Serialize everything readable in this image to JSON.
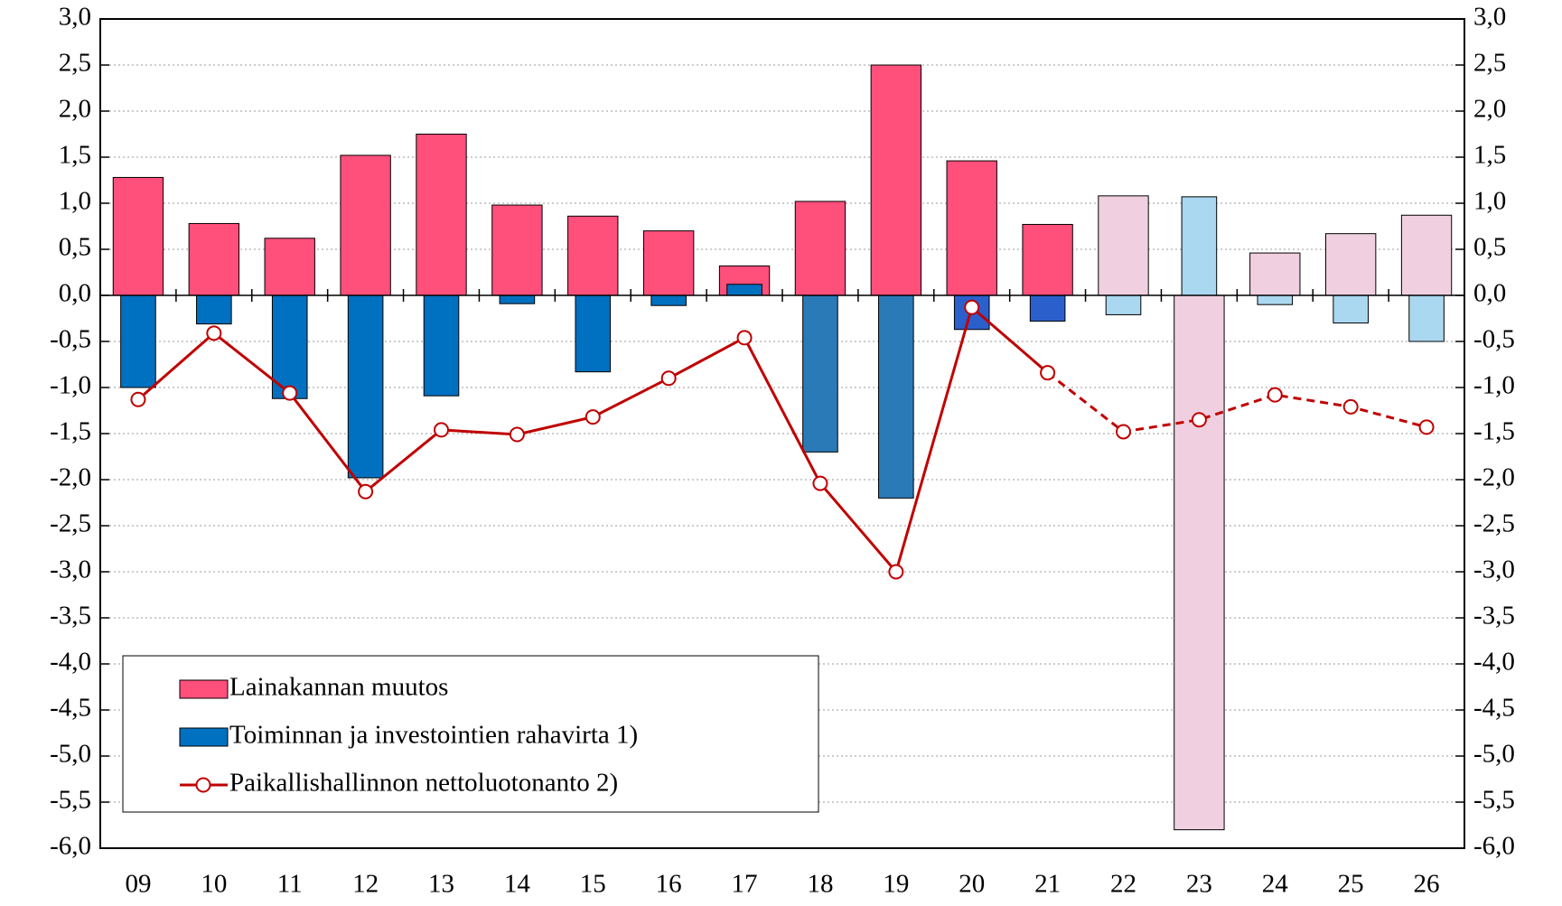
{
  "chart_data": {
    "type": "bar",
    "categories": [
      "09",
      "10",
      "11",
      "12",
      "13",
      "14",
      "15",
      "16",
      "17",
      "18",
      "19",
      "20",
      "21",
      "22",
      "23",
      "24",
      "25",
      "26"
    ],
    "series": [
      {
        "name": "Lainakannan muutos",
        "type": "bar",
        "color": "#ff4f7b",
        "colors": [
          "#ff4f7b",
          "#ff4f7b",
          "#ff4f7b",
          "#ff4f7b",
          "#ff4f7b",
          "#ff4f7b",
          "#ff4f7b",
          "#ff4f7b",
          "#ff4f7b",
          "#ff4f7b",
          "#ff4f7b",
          "#ff4f7b",
          "#ff4f7b",
          "#f0d0e0",
          "#f0d0e0",
          "#f0d0e0",
          "#f0d0e0",
          "#f0d0e0"
        ],
        "values": [
          1.28,
          0.78,
          0.62,
          1.52,
          1.75,
          0.98,
          0.86,
          0.7,
          0.32,
          1.02,
          2.5,
          1.46,
          0.77,
          1.08,
          -5.8,
          0.46,
          0.67,
          0.87
        ]
      },
      {
        "name": "Toiminnan ja investointien rahavirta 1)",
        "type": "bar",
        "color": "#0070c0",
        "colors": [
          "#0070c0",
          "#0070c0",
          "#0070c0",
          "#0070c0",
          "#0070c0",
          "#0070c0",
          "#0070c0",
          "#0070c0",
          "#0070c0",
          "#2a7ab8",
          "#2a7ab8",
          "#2b5fcc",
          "#2b5fcc",
          "#aad8f0",
          "#aad8f0",
          "#aad8f0",
          "#aad8f0",
          "#aad8f0"
        ],
        "values": [
          -1.0,
          -0.31,
          -1.12,
          -1.98,
          -1.09,
          -0.09,
          -0.83,
          -0.11,
          0.12,
          -1.7,
          -2.2,
          -0.37,
          -0.28,
          -0.21,
          1.07,
          -0.1,
          -0.3,
          -0.5
        ]
      },
      {
        "name": "Paikallishallinnon nettoluotonanto 2)",
        "type": "line",
        "color": "#c00000",
        "dashed_from": "22",
        "values": [
          -1.13,
          -0.41,
          -1.06,
          -2.13,
          -1.46,
          -1.51,
          -1.32,
          -0.9,
          -0.46,
          -2.04,
          -3.0,
          -0.13,
          -0.84,
          -1.48,
          -1.35,
          -1.08,
          -1.21,
          -1.43
        ]
      }
    ],
    "ylim": [
      -6,
      3
    ],
    "yticks": [
      {
        "value": -6,
        "label": "-6,0"
      },
      {
        "value": -5.5,
        "label": "-5,5"
      },
      {
        "value": -5,
        "label": "-5,0"
      },
      {
        "value": -4.5,
        "label": "-4,5"
      },
      {
        "value": -4,
        "label": "-4,0"
      },
      {
        "value": -3.5,
        "label": "-3,5"
      },
      {
        "value": -3,
        "label": "-3,0"
      },
      {
        "value": -2.5,
        "label": "-2,5"
      },
      {
        "value": -2,
        "label": "-2,0"
      },
      {
        "value": -1.5,
        "label": "-1,5"
      },
      {
        "value": -1,
        "label": "-1,0"
      },
      {
        "value": -0.5,
        "label": "-0,5"
      },
      {
        "value": 0,
        "label": "0,0"
      },
      {
        "value": 0.5,
        "label": "0,5"
      },
      {
        "value": 1,
        "label": "1,0"
      },
      {
        "value": 1.5,
        "label": "1,5"
      },
      {
        "value": 2,
        "label": "2,0"
      },
      {
        "value": 2.5,
        "label": "2,5"
      },
      {
        "value": 3,
        "label": "3,0"
      }
    ],
    "y2lim": [
      -6,
      3
    ],
    "y2ticks": [
      {
        "value": -6,
        "label": "-6,0"
      },
      {
        "value": -5.5,
        "label": "-5,5"
      },
      {
        "value": -5,
        "label": "-5,0"
      },
      {
        "value": -4.5,
        "label": "-4,5"
      },
      {
        "value": -4,
        "label": "-4,0"
      },
      {
        "value": -3.5,
        "label": "-3,5"
      },
      {
        "value": -3,
        "label": "-3,0"
      },
      {
        "value": -2.5,
        "label": "-2,5"
      },
      {
        "value": -2,
        "label": "-2,0"
      },
      {
        "value": -1.5,
        "label": "-1,5"
      },
      {
        "value": -1,
        "label": "-1,0"
      },
      {
        "value": -0.5,
        "label": "-0,5"
      },
      {
        "value": 0,
        "label": "0,0"
      },
      {
        "value": 0.5,
        "label": "0,5"
      },
      {
        "value": 1,
        "label": "1,0"
      },
      {
        "value": 1.5,
        "label": "1,5"
      },
      {
        "value": 2,
        "label": "2,0"
      },
      {
        "value": 2.5,
        "label": "2,5"
      },
      {
        "value": 3,
        "label": "3,0"
      }
    ],
    "grid": true,
    "legend": "lower left"
  }
}
